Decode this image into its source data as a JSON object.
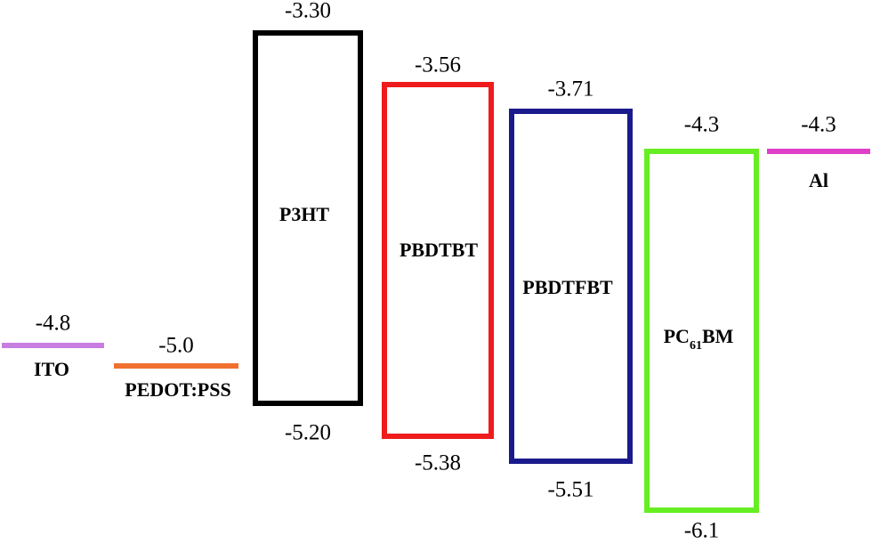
{
  "nodes": [
    {
      "label": "ITO",
      "top": "-4.8",
      "color": "#c77ee0"
    },
    {
      "label": "PEDOT:PSS",
      "top": "-5.0",
      "color": "#f07030"
    },
    {
      "label": "P3HT",
      "top": "-3.30",
      "bottom": "-5.20",
      "color": "#000000"
    },
    {
      "label": "PBDTBT",
      "top": "-3.56",
      "bottom": "-5.38",
      "color": "#ee1c1c"
    },
    {
      "label": "PBDTFBT",
      "top": "-3.71",
      "bottom": "-5.51",
      "color": "#1a1a8c"
    },
    {
      "label": [
        "PC",
        "61",
        "BM"
      ],
      "top": "-4.3",
      "bottom": "-6.1",
      "color": "#66ee22"
    },
    {
      "label": "Al",
      "top": "-4.3",
      "color": "#e040c8"
    }
  ]
}
